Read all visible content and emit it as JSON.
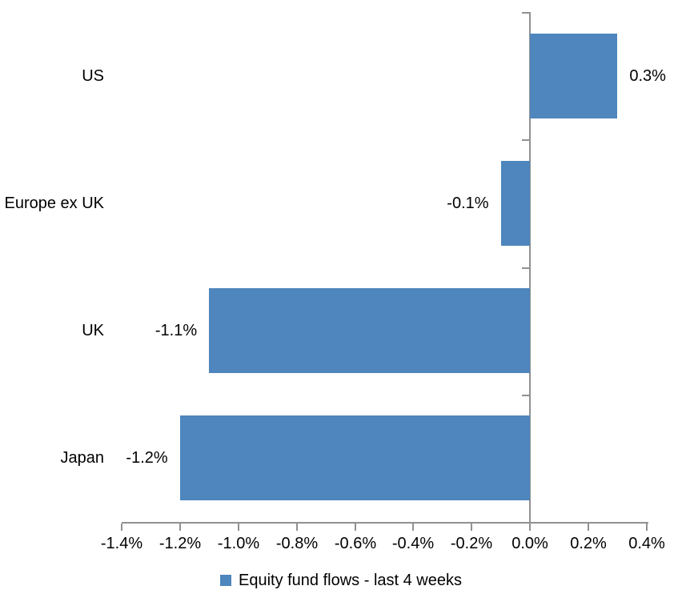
{
  "chart_data": {
    "type": "bar",
    "orientation": "horizontal",
    "title": "",
    "xlabel": "",
    "ylabel": "",
    "grid": false,
    "categories": [
      "US",
      "Europe ex UK",
      "UK",
      "Japan"
    ],
    "values": [
      0.3,
      -0.1,
      -1.1,
      -1.2
    ],
    "data_labels": [
      "0.3%",
      "-0.1%",
      "-1.1%",
      "-1.2%"
    ],
    "series_name": "Equity fund flows - last 4 weeks",
    "xlim": [
      -1.4,
      0.4
    ],
    "x_ticks": [
      -1.4,
      -1.2,
      -1.0,
      -0.8,
      -0.6,
      -0.4,
      -0.2,
      0.0,
      0.2,
      0.4
    ],
    "x_tick_labels": [
      "-1.4%",
      "-1.2%",
      "-1.0%",
      "-0.8%",
      "-0.6%",
      "-0.4%",
      "-0.2%",
      "0.0%",
      "0.2%",
      "0.4%"
    ],
    "legend_position": "bottom",
    "colors": {
      "bar": "#4E86BD",
      "axis": "#919191",
      "text": "#000000",
      "background": "#FFFFFF"
    }
  },
  "legend": {
    "label": "Equity fund flows - last 4 weeks"
  }
}
